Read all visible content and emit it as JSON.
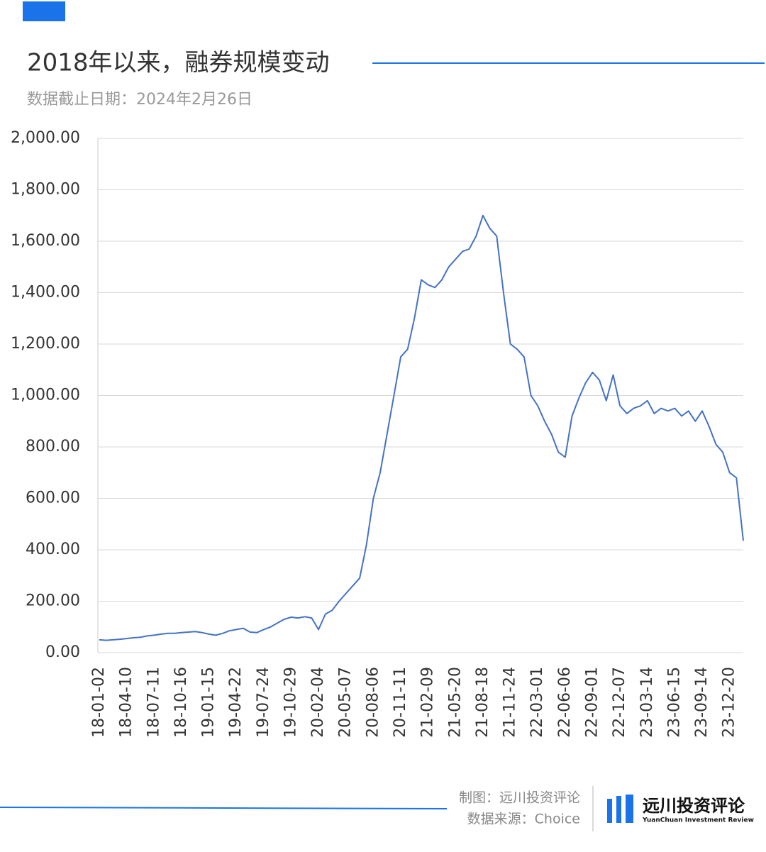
{
  "chart_data": {
    "type": "line",
    "title": "2018年以来，融券规模变动",
    "subtitle": "数据截止日期：2024年2月26日",
    "credit": "制图：远川投资评论",
    "source": "数据来源：Choice",
    "brand": "远川投资评论",
    "brand_en": "YuanChuan Investment Review",
    "color": "#4472c4",
    "grid": true,
    "ylim": [
      0,
      2000
    ],
    "yticks": [
      {
        "value": 0,
        "label": "0.00"
      },
      {
        "value": 200,
        "label": "200.00"
      },
      {
        "value": 400,
        "label": "400.00"
      },
      {
        "value": 600,
        "label": "600.00"
      },
      {
        "value": 800,
        "label": "800.00"
      },
      {
        "value": 1000,
        "label": "1,000.00"
      },
      {
        "value": 1200,
        "label": "1,200.00"
      },
      {
        "value": 1400,
        "label": "1,400.00"
      },
      {
        "value": 1600,
        "label": "1,600.00"
      },
      {
        "value": 1800,
        "label": "1,800.00"
      },
      {
        "value": 2000,
        "label": "2,000.00"
      }
    ],
    "categories": [
      "18-01-02",
      null,
      null,
      null,
      "18-04-10",
      null,
      null,
      null,
      "18-07-11",
      null,
      null,
      null,
      "18-10-16",
      null,
      null,
      null,
      "19-01-15",
      null,
      null,
      null,
      "19-04-22",
      null,
      null,
      null,
      "19-07-24",
      null,
      null,
      null,
      "19-10-29",
      null,
      null,
      null,
      "20-02-04",
      null,
      null,
      null,
      "20-05-07",
      null,
      null,
      null,
      "20-08-06",
      null,
      null,
      null,
      "20-11-11",
      null,
      null,
      null,
      "21-02-09",
      null,
      null,
      null,
      "21-05-20",
      null,
      null,
      null,
      "21-08-18",
      null,
      null,
      null,
      "21-11-24",
      null,
      null,
      null,
      "22-03-01",
      null,
      null,
      null,
      "22-06-06",
      null,
      null,
      null,
      "22-09-01",
      null,
      null,
      null,
      "22-12-07",
      null,
      null,
      null,
      "23-03-14",
      null,
      null,
      null,
      "23-06-15",
      null,
      null,
      null,
      "23-09-14",
      null,
      null,
      null,
      "23-12-20",
      null,
      null
    ],
    "values": [
      50,
      48,
      50,
      52,
      55,
      58,
      60,
      65,
      68,
      72,
      75,
      75,
      78,
      80,
      82,
      78,
      72,
      68,
      75,
      85,
      90,
      95,
      80,
      78,
      90,
      100,
      115,
      130,
      138,
      135,
      140,
      135,
      90,
      150,
      165,
      200,
      230,
      260,
      290,
      420,
      600,
      700,
      850,
      1000,
      1150,
      1180,
      1300,
      1450,
      1430,
      1420,
      1450,
      1500,
      1530,
      1560,
      1570,
      1620,
      1700,
      1650,
      1620,
      1400,
      1200,
      1180,
      1150,
      1000,
      960,
      900,
      850,
      780,
      760,
      920,
      990,
      1050,
      1090,
      1060,
      980,
      1080,
      960,
      930,
      950,
      960,
      980,
      930,
      950,
      940,
      950,
      920,
      940,
      900,
      940,
      880,
      810,
      780,
      700,
      680,
      435
    ]
  }
}
